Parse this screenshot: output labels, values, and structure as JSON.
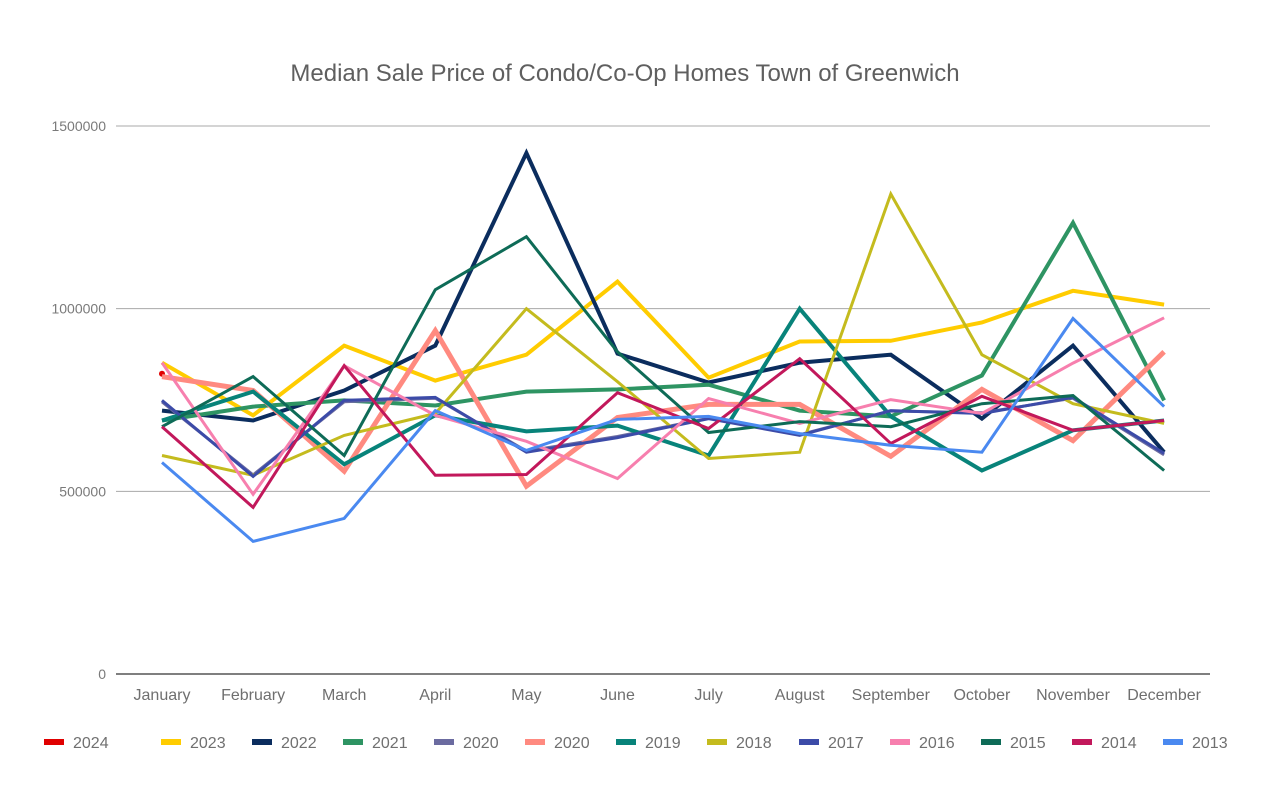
{
  "chart_data": {
    "type": "line",
    "title": "Median Sale Price of Condo/Co-Op Homes Town of Greenwich",
    "xlabel": "",
    "ylabel": "",
    "ylim": [
      0,
      1500000
    ],
    "yticks": [
      0,
      500000,
      1000000,
      1500000
    ],
    "ytick_labels": [
      "0",
      "500000",
      "1000000",
      "1500000"
    ],
    "grid": true,
    "legend_position": "bottom",
    "categories": [
      "January",
      "February",
      "March",
      "April",
      "May",
      "June",
      "July",
      "August",
      "September",
      "October",
      "November",
      "December"
    ],
    "series": [
      {
        "name": "2024",
        "color": "#e00000",
        "width": 3,
        "values": [
          822000,
          null,
          null,
          null,
          null,
          null,
          null,
          null,
          null,
          null,
          null,
          null
        ]
      },
      {
        "name": "2023",
        "color": "#ffcc00",
        "width": 4,
        "values": [
          852000,
          708000,
          899000,
          803000,
          874000,
          1074000,
          811000,
          910000,
          912000,
          962000,
          1049000,
          1011000
        ]
      },
      {
        "name": "2022",
        "color": "#0b2d5e",
        "width": 4,
        "values": [
          721000,
          694000,
          776000,
          899000,
          1426000,
          877000,
          798000,
          852000,
          874000,
          699000,
          899000,
          607000
        ]
      },
      {
        "name": "2021",
        "color": "#2e9463",
        "width": 4,
        "values": [
          694000,
          732000,
          749000,
          735000,
          773000,
          779000,
          792000,
          721000,
          705000,
          817000,
          1235000,
          749000
        ]
      },
      {
        "name": "2020",
        "color": "#6b6ba0",
        "width": 3,
        "values": [
          745000,
          545000,
          745000,
          755000,
          610000,
          650000,
          700000,
          655000,
          720000,
          715000,
          755000,
          600000
        ]
      },
      {
        "name": "2020",
        "color": "#ff8a80",
        "width": 5,
        "values": [
          814000,
          776000,
          555000,
          940000,
          514000,
          702000,
          738000,
          738000,
          596000,
          779000,
          639000,
          882000
        ]
      },
      {
        "name": "2019",
        "color": "#08837a",
        "width": 4,
        "values": [
          694000,
          773000,
          574000,
          708000,
          664000,
          680000,
          598000,
          1000000,
          705000,
          557000,
          667000,
          694000
        ]
      },
      {
        "name": "2018",
        "color": "#c4bb1e",
        "width": 3,
        "values": [
          598000,
          544000,
          653000,
          713000,
          1000000,
          800000,
          590000,
          607000,
          1314000,
          874000,
          740000,
          686000
        ]
      },
      {
        "name": "2017",
        "color": "#3c4ba8",
        "width": 3,
        "values": [
          749000,
          541000,
          749000,
          757000,
          607000,
          647000,
          699000,
          653000,
          721000,
          713000,
          757000,
          604000
        ]
      },
      {
        "name": "2016",
        "color": "#f77fae",
        "width": 3,
        "values": [
          852000,
          492000,
          844000,
          708000,
          637000,
          535000,
          754000,
          686000,
          751000,
          713000,
          851000,
          975000
        ]
      },
      {
        "name": "2015",
        "color": "#0e6b57",
        "width": 3,
        "values": [
          677000,
          814000,
          598000,
          1052000,
          1197000,
          882000,
          661000,
          691000,
          677000,
          740000,
          762000,
          557000
        ]
      },
      {
        "name": "2014",
        "color": "#c2185b",
        "width": 3,
        "values": [
          677000,
          456000,
          844000,
          544000,
          546000,
          770000,
          672000,
          863000,
          631000,
          760000,
          667000,
          694000
        ]
      },
      {
        "name": "2013",
        "color": "#4a89f0",
        "width": 3,
        "values": [
          579000,
          363000,
          426000,
          721000,
          612000,
          697000,
          705000,
          658000,
          626000,
          607000,
          973000,
          732000
        ]
      }
    ]
  }
}
